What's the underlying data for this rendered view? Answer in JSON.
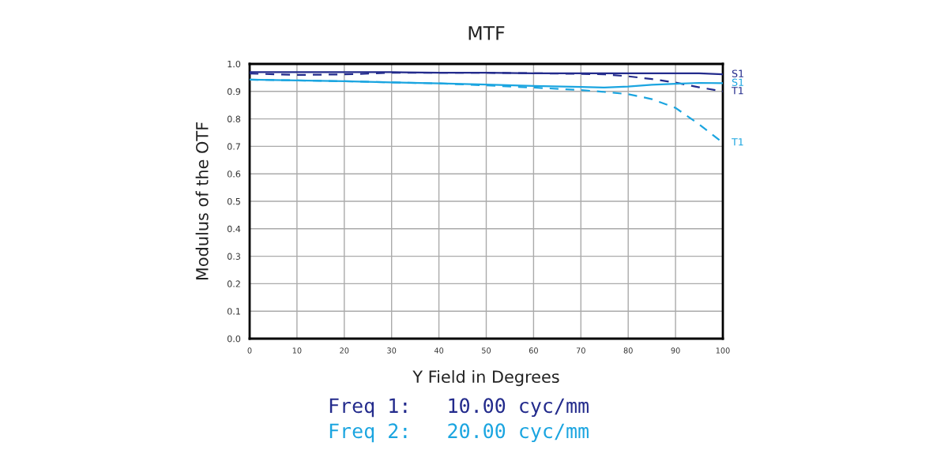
{
  "chart_data": {
    "type": "line",
    "title": "MTF",
    "xlabel": "Y Field in Degrees",
    "ylabel": "Modulus of the OTF",
    "x": [
      0,
      10,
      20,
      30,
      40,
      50,
      60,
      70,
      75,
      80,
      85,
      90,
      95,
      100
    ],
    "series": [
      {
        "name": "S1",
        "color": "#232b8c",
        "line_style": "solid",
        "values": [
          0.97,
          0.97,
          0.97,
          0.97,
          0.968,
          0.968,
          0.966,
          0.966,
          0.966,
          0.966,
          0.966,
          0.966,
          0.966,
          0.962
        ]
      },
      {
        "name": "T1",
        "color": "#232b8c",
        "line_style": "dashed",
        "values": [
          0.965,
          0.96,
          0.962,
          0.968,
          0.968,
          0.968,
          0.966,
          0.964,
          0.962,
          0.955,
          0.945,
          0.932,
          0.915,
          0.9
        ]
      },
      {
        "name": "S1",
        "color": "#1ba5e0",
        "line_style": "solid",
        "values": [
          0.943,
          0.94,
          0.937,
          0.933,
          0.929,
          0.925,
          0.92,
          0.916,
          0.914,
          0.918,
          0.924,
          0.928,
          0.931,
          0.93
        ]
      },
      {
        "name": "T1",
        "color": "#1ba5e0",
        "line_style": "dashed",
        "values": [
          0.943,
          0.94,
          0.937,
          0.933,
          0.929,
          0.922,
          0.914,
          0.905,
          0.898,
          0.89,
          0.872,
          0.84,
          0.78,
          0.713
        ]
      }
    ],
    "xlim": [
      0,
      100
    ],
    "ylim": [
      0,
      1.0
    ],
    "xticks": [
      0,
      10,
      20,
      30,
      40,
      50,
      60,
      70,
      80,
      90,
      100
    ],
    "yticks": [
      {
        "value": 0,
        "label": "0.0"
      },
      0.1,
      0.2,
      0.3,
      0.4,
      0.5,
      0.6,
      0.7,
      0.8,
      0.9,
      {
        "value": 1.0,
        "label": "1.0"
      }
    ],
    "grid": true,
    "annotations": [
      "Freq 1:   10.00 cyc/mm",
      "Freq 2:   20.00 cyc/mm"
    ]
  }
}
